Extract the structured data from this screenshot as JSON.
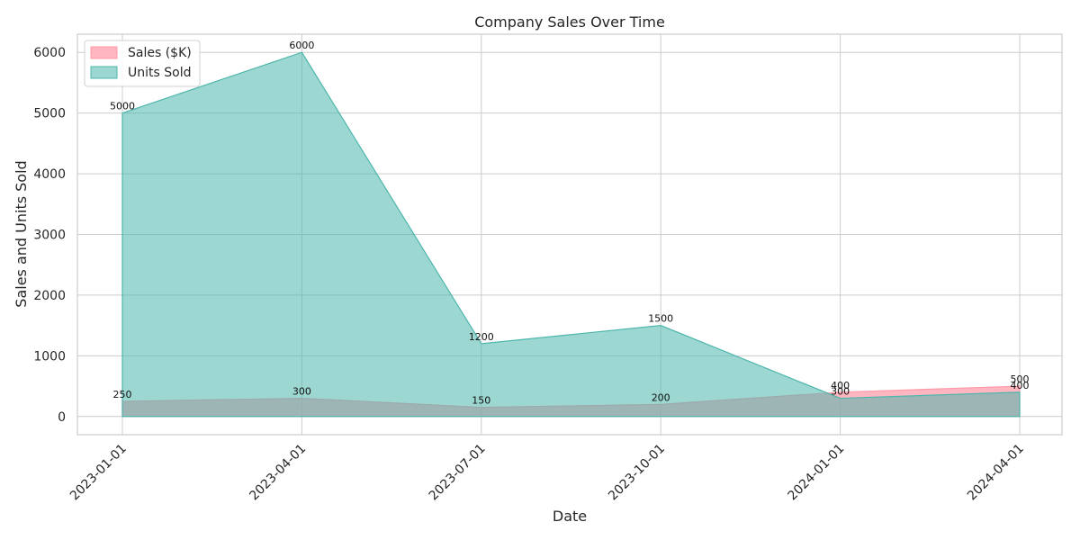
{
  "chart_data": {
    "type": "area",
    "title": "Company Sales Over Time",
    "xlabel": "Date",
    "ylabel": "Sales and Units Sold",
    "x": [
      "2023-01-01",
      "2023-04-01",
      "2023-07-01",
      "2023-10-01",
      "2024-01-01",
      "2024-04-01"
    ],
    "yticks": [
      0,
      1000,
      2000,
      3000,
      4000,
      5000,
      6000
    ],
    "ylim": [
      -300,
      6300
    ],
    "grid": true,
    "legend_position": "top-left",
    "series": [
      {
        "name": "Sales ($K)",
        "color": "#ff9aa8",
        "values": [
          250,
          300,
          150,
          200,
          400,
          500
        ]
      },
      {
        "name": "Units Sold",
        "color": "#4db6ac",
        "values": [
          5000,
          6000,
          1200,
          1500,
          300,
          400
        ]
      }
    ]
  }
}
